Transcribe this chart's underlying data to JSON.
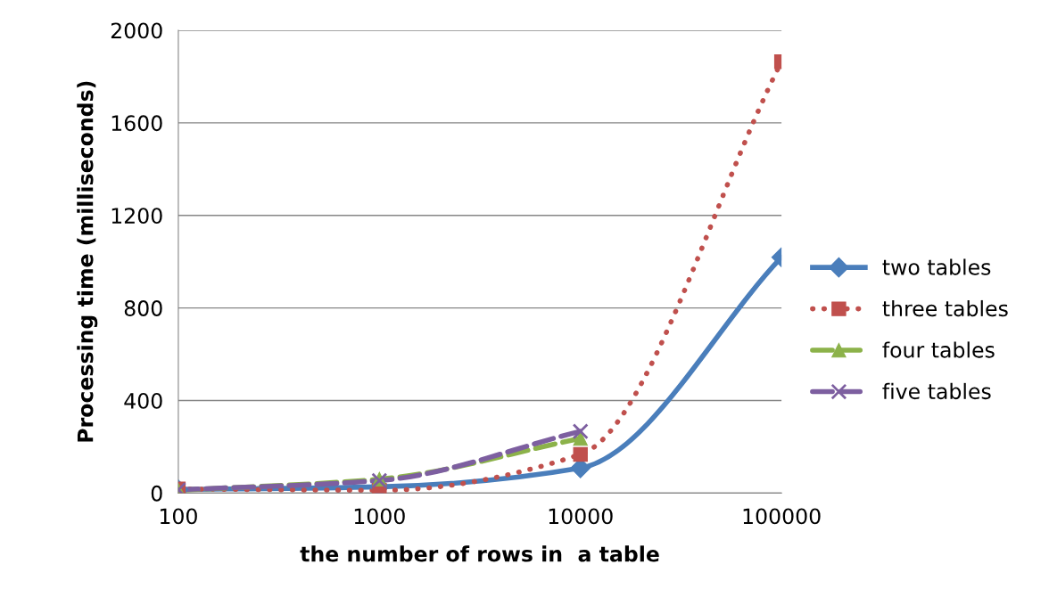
{
  "chart_data": {
    "type": "line",
    "xlabel": "the number of rows in  a table",
    "ylabel": "Processing time (milliseconds)",
    "categories": [
      "100",
      "1000",
      "10000",
      "100000"
    ],
    "series": [
      {
        "name": "two tables",
        "color": "#4a7ebb",
        "marker": "diamond",
        "line_style": "solid",
        "values": [
          15,
          27,
          108,
          1019
        ]
      },
      {
        "name": "three tables",
        "color": "#c0504d",
        "marker": "square",
        "line_style": "dotted",
        "values": [
          18,
          12,
          167,
          1864
        ]
      },
      {
        "name": "four tables",
        "color": "#8cb24a",
        "marker": "triangle",
        "line_style": "dashed",
        "values": [
          12,
          60,
          236,
          null
        ]
      },
      {
        "name": "five tables",
        "color": "#7d5fa0",
        "marker": "cross",
        "line_style": "dashed",
        "values": [
          14,
          54,
          267,
          null
        ]
      }
    ],
    "ylim": [
      0,
      2000
    ],
    "yticks": [
      0,
      400,
      800,
      1200,
      1600,
      2000
    ],
    "grid": "y",
    "legend": "right"
  }
}
